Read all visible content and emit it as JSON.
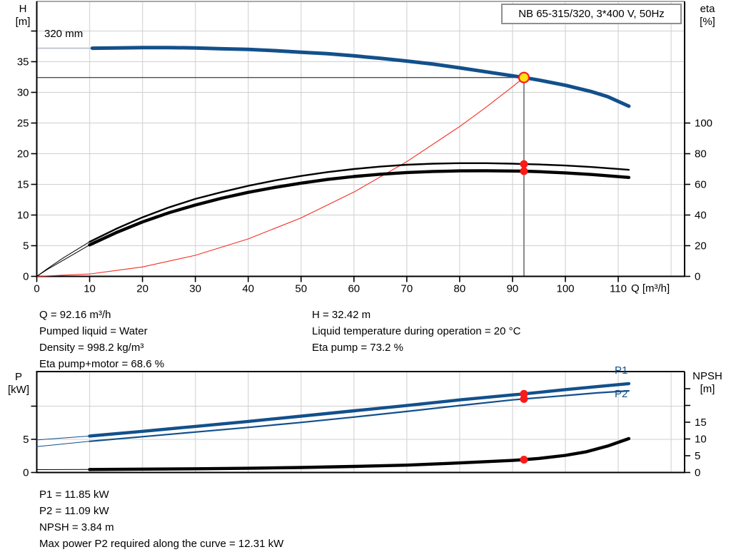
{
  "title_box": {
    "label": "NB 65-315/320, 3*400 V, 50Hz"
  },
  "impeller_label": "320 mm",
  "axis_titles": {
    "head": "H",
    "head_unit": "[m]",
    "eta": "eta",
    "eta_unit": "[%]",
    "flow": "Q [m³/h]",
    "power": "P",
    "power_unit": "[kW]",
    "npsh": "NPSH",
    "npsh_unit": "[m]"
  },
  "curve_labels": {
    "p1": "P1",
    "p2": "P2"
  },
  "info": {
    "left": [
      "Q = 92.16 m³/h",
      "Pumped liquid = Water",
      "Density = 998.2 kg/m³",
      "Eta pump+motor = 68.6 %"
    ],
    "right": [
      "H = 32.42 m",
      "Liquid temperature during operation = 20 °C",
      "Eta pump = 73.2 %"
    ],
    "bottom": [
      "P1 = 11.85 kW",
      "P2 = 11.09 kW",
      "NPSH = 3.84 m",
      "Max power P2 required along the curve = 12.31 kW"
    ]
  },
  "colors": {
    "blue": "#12508b",
    "black": "#000000",
    "red": "#f42e22",
    "dot_red": "#fb1a1a",
    "duty_yellow": "#ffdf17",
    "grid": "#dcdcdc",
    "top_border": "#a9a9a9",
    "crosshair_h": "#4f4f4f",
    "crosshair_v": "#8a8a8a",
    "leader": "#b6bdc9"
  },
  "chart_data": [
    {
      "type": "line",
      "title": "NB 65-315/320, 3*400 V, 50Hz",
      "xlabel": "Q [m³/h]",
      "ylabel_left": "H [m]",
      "ylabel_right": "eta [%]",
      "xlim": [
        0,
        122.6
      ],
      "ylim_left": [
        0,
        44.8
      ],
      "ylim_right": [
        0,
        179
      ],
      "grid": true,
      "x_ticks_labeled": [
        0,
        10,
        20,
        30,
        40,
        50,
        60,
        70,
        80,
        90,
        100,
        110
      ],
      "x_grid": [
        10,
        20,
        30,
        40,
        50,
        60,
        70,
        80,
        90,
        100,
        110,
        120
      ],
      "y_left_ticks_labeled": [
        0,
        5,
        10,
        15,
        20,
        25,
        30,
        35
      ],
      "y_left_ticks_unlabeled": [
        40
      ],
      "y_right_ticks_labeled": [
        0,
        20,
        40,
        60,
        80,
        100
      ],
      "y_right_ticks_unlabeled": [],
      "series": [
        {
          "name": "system-curve",
          "axis": "left",
          "color": "red",
          "width": 1.1,
          "points": [
            [
              0,
              0
            ],
            [
              10,
              0.38
            ],
            [
              20,
              1.53
            ],
            [
              30,
              3.43
            ],
            [
              40,
              6.11
            ],
            [
              50,
              9.54
            ],
            [
              60,
              13.74
            ],
            [
              70,
              18.71
            ],
            [
              80,
              24.43
            ],
            [
              85,
              27.58
            ],
            [
              90,
              30.92
            ],
            [
              92.16,
              32.42
            ]
          ]
        },
        {
          "name": "eta-pump",
          "axis": "right",
          "color": "black",
          "width": 2.4,
          "thin_until": 10,
          "points": [
            [
              0,
              0
            ],
            [
              2,
              5
            ],
            [
              5,
              12
            ],
            [
              10,
              22.5
            ],
            [
              15,
              31
            ],
            [
              20,
              38.5
            ],
            [
              25,
              45
            ],
            [
              30,
              50.5
            ],
            [
              35,
              55
            ],
            [
              40,
              59
            ],
            [
              45,
              62.5
            ],
            [
              50,
              65.5
            ],
            [
              55,
              68
            ],
            [
              60,
              70
            ],
            [
              65,
              71.6
            ],
            [
              70,
              72.8
            ],
            [
              75,
              73.5
            ],
            [
              80,
              73.8
            ],
            [
              85,
              73.8
            ],
            [
              90,
              73.5
            ],
            [
              92.16,
              73.2
            ],
            [
              95,
              73.0
            ],
            [
              100,
              72.3
            ],
            [
              105,
              71.3
            ],
            [
              112,
              69.5
            ]
          ]
        },
        {
          "name": "eta-pump-motor",
          "axis": "right",
          "color": "black",
          "width": 4.4,
          "thin_until": 10,
          "points": [
            [
              0,
              0
            ],
            [
              2,
              4.5
            ],
            [
              5,
              10.5
            ],
            [
              10,
              20.5
            ],
            [
              15,
              28.5
            ],
            [
              20,
              35.5
            ],
            [
              25,
              41.5
            ],
            [
              30,
              46.5
            ],
            [
              35,
              51
            ],
            [
              40,
              54.8
            ],
            [
              45,
              58
            ],
            [
              50,
              60.8
            ],
            [
              55,
              63.2
            ],
            [
              60,
              65.1
            ],
            [
              65,
              66.6
            ],
            [
              70,
              67.7
            ],
            [
              75,
              68.4
            ],
            [
              80,
              68.8
            ],
            [
              85,
              68.9
            ],
            [
              90,
              68.7
            ],
            [
              92.16,
              68.6
            ],
            [
              95,
              68.3
            ],
            [
              100,
              67.5
            ],
            [
              105,
              66.4
            ],
            [
              112,
              64.5
            ]
          ]
        },
        {
          "name": "head-320mm",
          "axis": "left",
          "color": "blue",
          "width": 5,
          "points": [
            [
              10.5,
              37.2
            ],
            [
              15,
              37.25
            ],
            [
              20,
              37.3
            ],
            [
              25,
              37.3
            ],
            [
              30,
              37.25
            ],
            [
              35,
              37.1
            ],
            [
              40,
              37.0
            ],
            [
              45,
              36.8
            ],
            [
              50,
              36.55
            ],
            [
              55,
              36.3
            ],
            [
              60,
              35.95
            ],
            [
              65,
              35.55
            ],
            [
              70,
              35.1
            ],
            [
              75,
              34.6
            ],
            [
              80,
              34.0
            ],
            [
              85,
              33.35
            ],
            [
              90,
              32.7
            ],
            [
              92.16,
              32.42
            ],
            [
              95,
              32.0
            ],
            [
              100,
              31.15
            ],
            [
              105,
              30.1
            ],
            [
              108,
              29.3
            ],
            [
              112,
              27.75
            ]
          ]
        }
      ],
      "markers": [
        {
          "name": "duty-point",
          "x": 92.16,
          "y": 32.42,
          "axis": "left",
          "style": "duty"
        },
        {
          "name": "eta-pump-point",
          "x": 92.16,
          "y": 73.2,
          "axis": "right",
          "style": "dot"
        },
        {
          "name": "eta-pump-motor-point",
          "x": 92.16,
          "y": 68.6,
          "axis": "right",
          "style": "dot"
        }
      ],
      "crosshair": {
        "q": 92.16,
        "h": 32.42
      },
      "annotation": {
        "text": "320 mm",
        "leader_h": 37.2,
        "leader_q_end": 10.5
      }
    },
    {
      "type": "line",
      "title": "",
      "xlabel": "",
      "ylabel_left": "P [kW]",
      "ylabel_right": "NPSH [m]",
      "xlim": [
        0,
        122.6
      ],
      "ylim_left": [
        0,
        15.2
      ],
      "ylim_right": [
        0,
        30.1
      ],
      "grid": true,
      "x_ticks_labeled": [],
      "x_grid": [
        10,
        20,
        30,
        40,
        50,
        60,
        70,
        80,
        90,
        100,
        110,
        120
      ],
      "y_left_ticks_labeled": [
        0,
        5
      ],
      "y_left_ticks_unlabeled": [
        10
      ],
      "y_right_ticks_labeled": [
        0,
        5,
        10,
        15
      ],
      "y_right_ticks_unlabeled": [
        20,
        25
      ],
      "series": [
        {
          "name": "power-p2",
          "axis": "left",
          "color": "blue",
          "width": 2.2,
          "thin_until": 10,
          "points": [
            [
              0,
              3.9
            ],
            [
              10,
              4.7
            ],
            [
              20,
              5.4
            ],
            [
              30,
              6.1
            ],
            [
              40,
              6.8
            ],
            [
              50,
              7.55
            ],
            [
              60,
              8.35
            ],
            [
              70,
              9.2
            ],
            [
              80,
              10.1
            ],
            [
              90,
              10.95
            ],
            [
              92.16,
              11.09
            ],
            [
              100,
              11.6
            ],
            [
              106,
              12.0
            ],
            [
              112,
              12.31
            ]
          ]
        },
        {
          "name": "power-p1",
          "axis": "left",
          "color": "blue",
          "width": 4.4,
          "thin_until": 10,
          "points": [
            [
              0,
              4.9
            ],
            [
              10,
              5.5
            ],
            [
              20,
              6.2
            ],
            [
              30,
              6.95
            ],
            [
              40,
              7.7
            ],
            [
              50,
              8.5
            ],
            [
              60,
              9.3
            ],
            [
              70,
              10.1
            ],
            [
              80,
              10.95
            ],
            [
              90,
              11.7
            ],
            [
              92.16,
              11.85
            ],
            [
              100,
              12.5
            ],
            [
              106,
              12.95
            ],
            [
              112,
              13.4
            ]
          ]
        },
        {
          "name": "npsh",
          "axis": "right",
          "color": "black",
          "width": 4.4,
          "thin_until": 10,
          "points": [
            [
              0,
              0.85
            ],
            [
              10,
              0.9
            ],
            [
              20,
              1.0
            ],
            [
              30,
              1.1
            ],
            [
              40,
              1.25
            ],
            [
              50,
              1.5
            ],
            [
              60,
              1.8
            ],
            [
              70,
              2.2
            ],
            [
              80,
              2.85
            ],
            [
              90,
              3.6
            ],
            [
              92.16,
              3.84
            ],
            [
              95,
              4.2
            ],
            [
              100,
              5.1
            ],
            [
              104,
              6.2
            ],
            [
              108,
              7.9
            ],
            [
              112,
              10.1
            ]
          ]
        }
      ],
      "markers": [
        {
          "name": "p1-point",
          "x": 92.16,
          "y": 11.85,
          "axis": "left",
          "style": "dot"
        },
        {
          "name": "p2-point",
          "x": 92.16,
          "y": 11.09,
          "axis": "left",
          "style": "dot"
        },
        {
          "name": "npsh-point",
          "x": 92.16,
          "y": 3.84,
          "axis": "right",
          "style": "dot"
        }
      ]
    }
  ]
}
